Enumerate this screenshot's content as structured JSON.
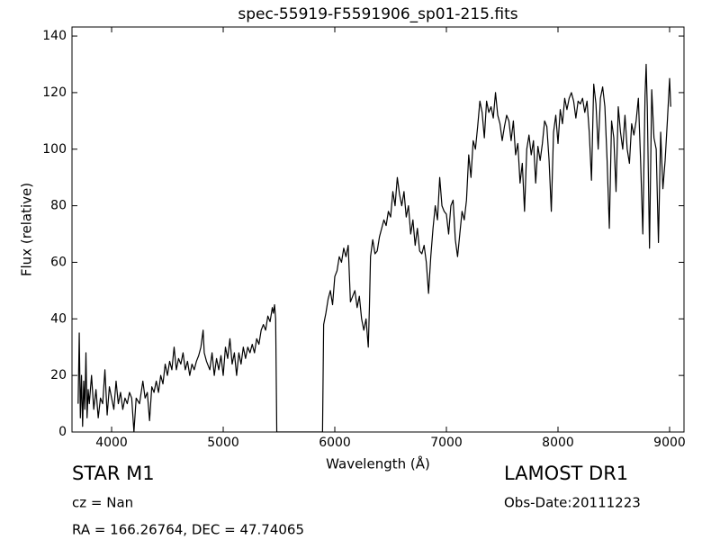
{
  "chart_data": {
    "type": "line",
    "title": "spec-55919-F5591906_sp01-215.fits",
    "x_label": "Wavelength (Å)",
    "y_label": "Flux (relative)",
    "annotations": [
      "STAR   M1",
      "LAMOST DR1",
      "cz = Nan",
      "Obs-Date:20111223",
      "RA = 166.26764, DEC = 47.74065"
    ],
    "xlim": [
      3645,
      9129
    ],
    "ylim": [
      0,
      143.2
    ],
    "xticks": [
      4000,
      5000,
      6000,
      7000,
      8000,
      9000
    ],
    "yticks": [
      0,
      20,
      40,
      60,
      80,
      100,
      120,
      140
    ],
    "grid": false,
    "series": [
      {
        "color": "#000000",
        "x": [
          3700,
          3710,
          3720,
          3730,
          3740,
          3750,
          3760,
          3770,
          3780,
          3790,
          3800,
          3820,
          3840,
          3860,
          3880,
          3900,
          3920,
          3940,
          3960,
          3980,
          4000,
          4020,
          4040,
          4060,
          4080,
          4100,
          4120,
          4140,
          4160,
          4180,
          4200,
          4220,
          4250,
          4280,
          4300,
          4320,
          4340,
          4360,
          4380,
          4400,
          4420,
          4440,
          4460,
          4480,
          4500,
          4520,
          4540,
          4560,
          4580,
          4600,
          4620,
          4640,
          4660,
          4680,
          4700,
          4720,
          4740,
          4760,
          4780,
          4800,
          4820,
          4830,
          4850,
          4880,
          4900,
          4920,
          4940,
          4960,
          4980,
          5000,
          5020,
          5040,
          5060,
          5080,
          5100,
          5120,
          5140,
          5160,
          5180,
          5200,
          5220,
          5240,
          5260,
          5280,
          5300,
          5320,
          5340,
          5360,
          5380,
          5400,
          5420,
          5440,
          5450,
          5460,
          5470,
          5480,
          5600,
          5700,
          5800,
          5890,
          5900,
          5920,
          5940,
          5960,
          5980,
          6000,
          6020,
          6040,
          6060,
          6080,
          6100,
          6120,
          6140,
          6160,
          6180,
          6200,
          6220,
          6240,
          6260,
          6280,
          6300,
          6310,
          6320,
          6340,
          6360,
          6380,
          6400,
          6420,
          6440,
          6460,
          6480,
          6500,
          6520,
          6540,
          6560,
          6580,
          6600,
          6620,
          6640,
          6660,
          6680,
          6700,
          6720,
          6740,
          6760,
          6780,
          6800,
          6820,
          6840,
          6860,
          6880,
          6900,
          6920,
          6940,
          6960,
          6980,
          7000,
          7020,
          7040,
          7060,
          7080,
          7100,
          7120,
          7140,
          7160,
          7180,
          7200,
          7220,
          7240,
          7260,
          7280,
          7300,
          7320,
          7340,
          7360,
          7380,
          7400,
          7420,
          7440,
          7460,
          7480,
          7500,
          7520,
          7540,
          7560,
          7580,
          7600,
          7620,
          7640,
          7660,
          7680,
          7700,
          7720,
          7740,
          7760,
          7780,
          7800,
          7820,
          7840,
          7860,
          7880,
          7900,
          7920,
          7940,
          7960,
          7980,
          8000,
          8020,
          8040,
          8060,
          8080,
          8100,
          8120,
          8140,
          8160,
          8180,
          8200,
          8220,
          8240,
          8260,
          8280,
          8300,
          8320,
          8340,
          8360,
          8380,
          8400,
          8420,
          8440,
          8460,
          8480,
          8500,
          8520,
          8540,
          8560,
          8580,
          8600,
          8620,
          8640,
          8660,
          8680,
          8700,
          8720,
          8740,
          8760,
          8780,
          8790,
          8800,
          8820,
          8840,
          8860,
          8880,
          8900,
          8920,
          8940,
          8960,
          8980,
          9000,
          9010
        ],
        "values": [
          10,
          35,
          5,
          20,
          2,
          18,
          8,
          28,
          5,
          15,
          10,
          20,
          8,
          15,
          5,
          12,
          10,
          22,
          6,
          16,
          12,
          8,
          18,
          10,
          14,
          8,
          12,
          10,
          14,
          12,
          0,
          12,
          10,
          18,
          12,
          14,
          4,
          16,
          14,
          18,
          14,
          20,
          17,
          24,
          20,
          25,
          22,
          30,
          22,
          26,
          24,
          28,
          22,
          25,
          20,
          24,
          22,
          25,
          27,
          30,
          36,
          28,
          25,
          22,
          28,
          20,
          26,
          22,
          27,
          20,
          30,
          26,
          33,
          24,
          28,
          20,
          28,
          24,
          30,
          26,
          30,
          28,
          31,
          28,
          33,
          31,
          36,
          38,
          36,
          41,
          39,
          44,
          42,
          45,
          40,
          0,
          0,
          0,
          0,
          0,
          38,
          42,
          47,
          50,
          45,
          55,
          57,
          62,
          60,
          65,
          62,
          66,
          46,
          48,
          50,
          44,
          48,
          40,
          36,
          40,
          30,
          44,
          62,
          68,
          63,
          64,
          69,
          72,
          75,
          73,
          78,
          76,
          85,
          80,
          90,
          84,
          80,
          85,
          76,
          80,
          70,
          75,
          66,
          72,
          64,
          63,
          66,
          60,
          49,
          62,
          72,
          80,
          75,
          90,
          80,
          78,
          77,
          70,
          80,
          82,
          68,
          62,
          70,
          78,
          75,
          82,
          98,
          90,
          103,
          100,
          108,
          117,
          113,
          104,
          117,
          113,
          115,
          111,
          120,
          112,
          109,
          103,
          108,
          112,
          110,
          103,
          110,
          98,
          102,
          88,
          95,
          78,
          100,
          105,
          98,
          103,
          88,
          101,
          96,
          102,
          110,
          108,
          96,
          78,
          106,
          112,
          102,
          114,
          109,
          118,
          114,
          118,
          120,
          117,
          111,
          117,
          116,
          118,
          113,
          117,
          106,
          89,
          123,
          116,
          100,
          118,
          122,
          115,
          96,
          72,
          110,
          104,
          85,
          115,
          106,
          100,
          112,
          100,
          95,
          109,
          105,
          110,
          118,
          96,
          70,
          119,
          130,
          115,
          65,
          121,
          104,
          100,
          67,
          106,
          86,
          96,
          110,
          125,
          115
        ]
      }
    ]
  }
}
